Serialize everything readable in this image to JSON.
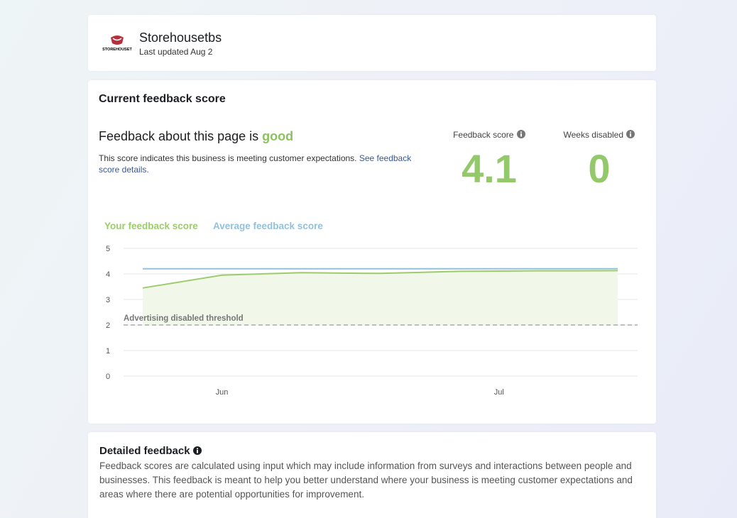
{
  "header": {
    "logo_text": "STOREHOUSET",
    "name": "Storehousetbs",
    "updated": "Last updated Aug 2"
  },
  "score": {
    "heading": "Current feedback score",
    "summary_prefix": "Feedback about this page is",
    "summary_rating": "good",
    "description": "This score indicates this business is meeting customer expectations.",
    "link": "See feedback score details.",
    "metrics": [
      {
        "label": "Feedback score",
        "value": 4.1
      },
      {
        "label": "Weeks disabled",
        "value": 0
      }
    ]
  },
  "chart_data": {
    "type": "line",
    "categories": [
      null,
      null,
      "Jun",
      null,
      null,
      null,
      null,
      null,
      null,
      "Jul",
      null,
      null,
      null
    ],
    "series": [
      {
        "name": "Your feedback score",
        "color": "#9ccc6b",
        "values": [
          3.45,
          3.7,
          3.95,
          4.0,
          4.05,
          4.03,
          4.02,
          4.06,
          4.1,
          4.11,
          4.12,
          4.12,
          4.13
        ]
      },
      {
        "name": "Average feedback score",
        "color": "#92c1da",
        "values": [
          4.2,
          4.2,
          4.2,
          4.2,
          4.2,
          4.2,
          4.2,
          4.2,
          4.2,
          4.2,
          4.2,
          4.2,
          4.2
        ]
      }
    ],
    "ylim": [
      0,
      5
    ],
    "yticks": [
      0,
      1,
      2,
      3,
      4,
      5
    ],
    "grid": true,
    "threshold": {
      "value": 2,
      "label": "Advertising disabled threshold"
    }
  },
  "detailed": {
    "title": "Detailed feedback",
    "text": "Feedback scores are calculated using input which may include information from surveys and interactions between people and businesses. This feedback is meant to help you better understand where your business is meeting customer expectations and areas where there are potential opportunities for improvement."
  }
}
